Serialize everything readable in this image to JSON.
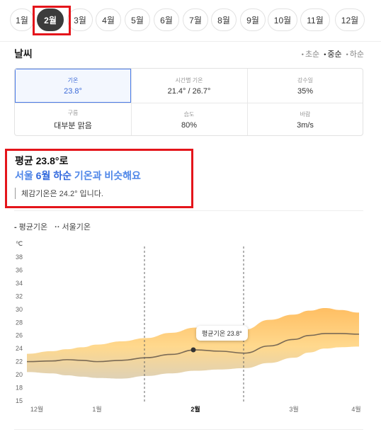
{
  "months": [
    "1월",
    "2월",
    "3월",
    "4월",
    "5월",
    "6월",
    "7월",
    "8월",
    "9월",
    "10월",
    "11월",
    "12월"
  ],
  "selected_month": "2월",
  "weather": {
    "title": "날씨",
    "periods": [
      {
        "label": "초순",
        "active": false
      },
      {
        "label": "중순",
        "active": true
      },
      {
        "label": "하순",
        "active": false
      }
    ]
  },
  "stats": [
    {
      "label": "기온",
      "value": "23.8°"
    },
    {
      "label": "시간별 기온",
      "value": "21.4° / 26.7°"
    },
    {
      "label": "강수일",
      "value": "35%"
    },
    {
      "label": "구름",
      "value": "대부분 맑음"
    },
    {
      "label": "습도",
      "value": "80%"
    },
    {
      "label": "바람",
      "value": "3m/s"
    }
  ],
  "summary": {
    "line1": "평균 23.8°로",
    "line2_pre": "서울 ",
    "line2_strong": "6월 하순",
    "line2_post": " 기온과 비슷해요",
    "line3": "체감기온은 24.2° 입니다."
  },
  "legend": {
    "avg": "평균기온",
    "seoul": "서울기온"
  },
  "tooltip": "평균기온 23.8°",
  "colors": {
    "accent": "#4b7ce8",
    "band_top": "#ffb347",
    "band_bottom": "#d9c9a8",
    "avg_line": "#7a6a55",
    "highlight": "#e4151b"
  },
  "chart_data": {
    "type": "area",
    "ylabel": "℃",
    "yticks": [
      15,
      18,
      20,
      22,
      24,
      26,
      28,
      30,
      32,
      34,
      36,
      38
    ],
    "ylim": [
      15,
      38
    ],
    "xticks": [
      {
        "label": "12월",
        "x": 0
      },
      {
        "label": "1월",
        "x": 1
      },
      {
        "label": "2월",
        "x": 2
      },
      {
        "label": "3월",
        "x": 3
      },
      {
        "label": "4월",
        "x": 4
      }
    ],
    "xlim": [
      0,
      4
    ],
    "x": [
      0,
      0.25,
      0.5,
      0.75,
      1,
      1.25,
      1.5,
      1.75,
      2,
      2.25,
      2.5,
      2.75,
      3,
      3.25,
      3.5,
      3.75,
      4.2
    ],
    "avg": [
      22.0,
      22.1,
      22.3,
      22.2,
      22.0,
      22.2,
      22.6,
      23.1,
      23.8,
      23.6,
      23.3,
      24.4,
      25.4,
      26.0,
      26.3,
      26.3,
      26.2
    ],
    "high": [
      23.2,
      23.6,
      23.9,
      24.2,
      24.6,
      25.1,
      25.6,
      26.4,
      27.2,
      27.3,
      26.9,
      28.4,
      29.2,
      29.8,
      30.2,
      29.9,
      29.5
    ],
    "low": [
      20.4,
      20.2,
      19.9,
      19.7,
      19.5,
      19.4,
      19.8,
      20.2,
      20.6,
      20.8,
      21.0,
      21.8,
      22.6,
      23.4,
      24.0,
      24.2,
      24.3
    ],
    "marker": {
      "x": 1.82,
      "y": 23.8
    },
    "dashed_x": [
      1.4,
      2.75
    ]
  }
}
